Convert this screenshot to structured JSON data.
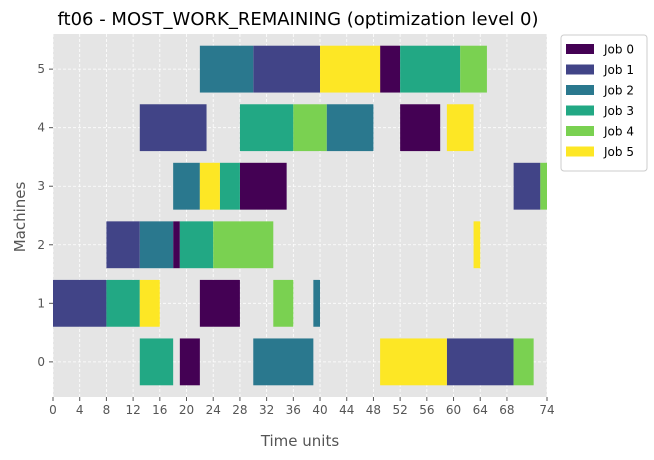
{
  "chart_data": {
    "type": "gantt",
    "title": "ft06 - MOST_WORK_REMAINING (optimization level 0)",
    "xlabel": "Time units",
    "ylabel": "Machines",
    "xlim": [
      0,
      74
    ],
    "x_ticks": [
      0,
      4,
      8,
      12,
      16,
      20,
      24,
      28,
      32,
      36,
      40,
      44,
      48,
      52,
      56,
      60,
      64,
      68,
      74
    ],
    "y_categories": [
      "0",
      "1",
      "2",
      "3",
      "4",
      "5"
    ],
    "legend_position": "upper-right-outside",
    "grid": true,
    "series": [
      {
        "name": "Job 0",
        "color": "#440154",
        "tasks": [
          {
            "machine": 0,
            "start": 19,
            "end": 22
          },
          {
            "machine": 1,
            "start": 22,
            "end": 28
          },
          {
            "machine": 2,
            "start": 18,
            "end": 19
          },
          {
            "machine": 3,
            "start": 28,
            "end": 35
          },
          {
            "machine": 4,
            "start": 52,
            "end": 58
          },
          {
            "machine": 5,
            "start": 49,
            "end": 52
          }
        ]
      },
      {
        "name": "Job 1",
        "color": "#414487",
        "tasks": [
          {
            "machine": 0,
            "start": 59,
            "end": 69
          },
          {
            "machine": 1,
            "start": 0,
            "end": 8
          },
          {
            "machine": 2,
            "start": 8,
            "end": 13
          },
          {
            "machine": 3,
            "start": 69,
            "end": 73
          },
          {
            "machine": 4,
            "start": 13,
            "end": 23
          },
          {
            "machine": 5,
            "start": 30,
            "end": 40
          }
        ]
      },
      {
        "name": "Job 2",
        "color": "#2a788e",
        "tasks": [
          {
            "machine": 0,
            "start": 30,
            "end": 39
          },
          {
            "machine": 1,
            "start": 39,
            "end": 40
          },
          {
            "machine": 2,
            "start": 13,
            "end": 18
          },
          {
            "machine": 3,
            "start": 18,
            "end": 22
          },
          {
            "machine": 4,
            "start": 41,
            "end": 48
          },
          {
            "machine": 5,
            "start": 22,
            "end": 30
          }
        ]
      },
      {
        "name": "Job 3",
        "color": "#22a884",
        "tasks": [
          {
            "machine": 0,
            "start": 13,
            "end": 18
          },
          {
            "machine": 1,
            "start": 8,
            "end": 13
          },
          {
            "machine": 2,
            "start": 19,
            "end": 24
          },
          {
            "machine": 3,
            "start": 25,
            "end": 28
          },
          {
            "machine": 4,
            "start": 28,
            "end": 36
          },
          {
            "machine": 5,
            "start": 52,
            "end": 61
          }
        ]
      },
      {
        "name": "Job 4",
        "color": "#7ad151",
        "tasks": [
          {
            "machine": 0,
            "start": 69,
            "end": 72
          },
          {
            "machine": 1,
            "start": 33,
            "end": 36
          },
          {
            "machine": 2,
            "start": 24,
            "end": 33
          },
          {
            "machine": 3,
            "start": 73,
            "end": 74
          },
          {
            "machine": 4,
            "start": 36,
            "end": 41
          },
          {
            "machine": 5,
            "start": 61,
            "end": 65
          }
        ]
      },
      {
        "name": "Job 5",
        "color": "#fde725",
        "tasks": [
          {
            "machine": 0,
            "start": 49,
            "end": 59
          },
          {
            "machine": 1,
            "start": 13,
            "end": 16
          },
          {
            "machine": 2,
            "start": 63,
            "end": 64
          },
          {
            "machine": 3,
            "start": 22,
            "end": 25
          },
          {
            "machine": 4,
            "start": 59,
            "end": 63
          },
          {
            "machine": 5,
            "start": 40,
            "end": 49
          }
        ]
      }
    ]
  }
}
